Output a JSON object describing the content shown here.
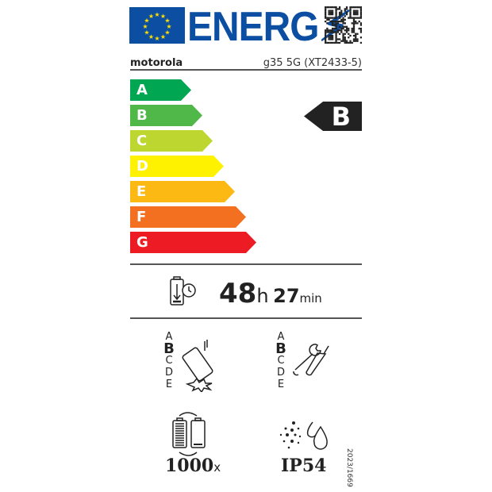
{
  "header": {
    "logo_text": "ENERG",
    "brand": "motorola",
    "model": "g35 5G (XT2433-5)"
  },
  "scale": [
    {
      "letter": "A",
      "color": "#00a651"
    },
    {
      "letter": "B",
      "color": "#50b848"
    },
    {
      "letter": "C",
      "color": "#bed630"
    },
    {
      "letter": "D",
      "color": "#fff200"
    },
    {
      "letter": "E",
      "color": "#fdb913"
    },
    {
      "letter": "F",
      "color": "#f37021"
    },
    {
      "letter": "G",
      "color": "#ed1c24"
    }
  ],
  "energy_class": "B",
  "battery": {
    "hours": "48",
    "h_unit": "h",
    "minutes": "27",
    "min_unit": "min"
  },
  "drop_scale": {
    "classes": [
      "A",
      "B",
      "C",
      "D",
      "E"
    ],
    "selected": "B"
  },
  "repair_scale": {
    "classes": [
      "A",
      "B",
      "C",
      "D",
      "E"
    ],
    "selected": "B"
  },
  "cycles": {
    "value": "1000",
    "unit": "x"
  },
  "ip_rating": "IP54",
  "regulation": "2023/1669"
}
